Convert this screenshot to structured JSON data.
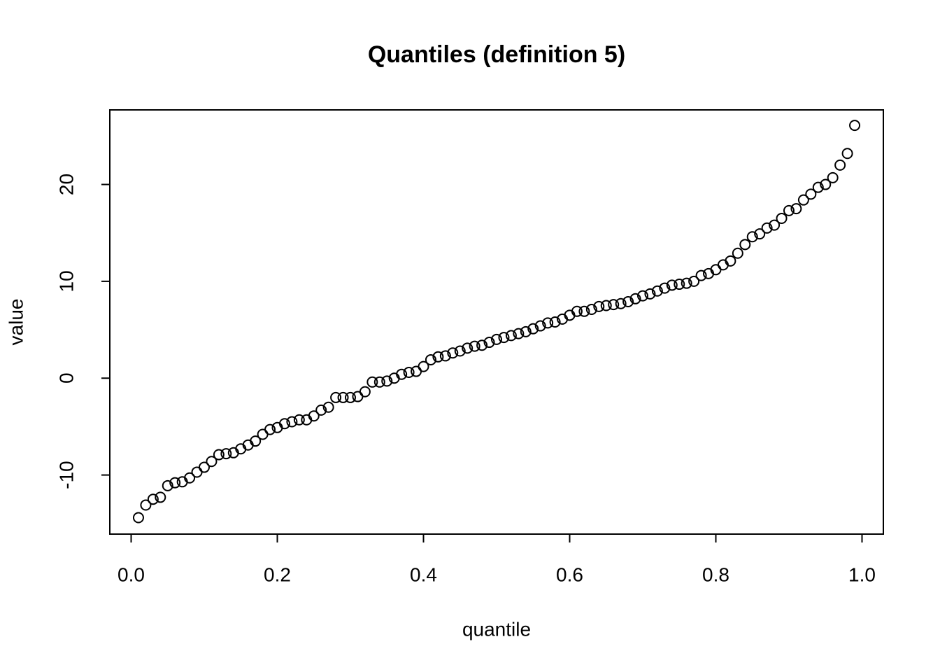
{
  "chart_data": {
    "type": "scatter",
    "title": "Quantiles (definition 5)",
    "x_label": "quantile",
    "y_label": "value",
    "x": [
      0.01,
      0.02,
      0.03,
      0.04,
      0.05,
      0.06,
      0.07,
      0.08,
      0.09,
      0.1,
      0.11,
      0.12,
      0.13,
      0.14,
      0.15,
      0.16,
      0.17,
      0.18,
      0.19,
      0.2,
      0.21,
      0.22,
      0.23,
      0.24,
      0.25,
      0.26,
      0.27,
      0.28,
      0.29,
      0.3,
      0.31,
      0.32,
      0.33,
      0.34,
      0.35,
      0.36,
      0.37,
      0.38,
      0.39,
      0.4,
      0.41,
      0.42,
      0.43,
      0.44,
      0.45,
      0.46,
      0.47,
      0.48,
      0.49,
      0.5,
      0.51,
      0.52,
      0.53,
      0.54,
      0.55,
      0.56,
      0.57,
      0.58,
      0.59,
      0.6,
      0.61,
      0.62,
      0.63,
      0.64,
      0.65,
      0.66,
      0.67,
      0.68,
      0.69,
      0.7,
      0.71,
      0.72,
      0.73,
      0.74,
      0.75,
      0.76,
      0.77,
      0.78,
      0.79,
      0.8,
      0.81,
      0.82,
      0.83,
      0.84,
      0.85,
      0.86,
      0.87,
      0.88,
      0.89,
      0.9,
      0.91,
      0.92,
      0.93,
      0.94,
      0.95,
      0.96,
      0.97,
      0.98,
      0.99
    ],
    "values": [
      -14.4,
      -13.1,
      -12.5,
      -12.3,
      -11.1,
      -10.8,
      -10.7,
      -10.3,
      -9.7,
      -9.2,
      -8.6,
      -7.9,
      -7.8,
      -7.7,
      -7.3,
      -6.9,
      -6.5,
      -5.8,
      -5.3,
      -5.1,
      -4.7,
      -4.5,
      -4.3,
      -4.3,
      -3.9,
      -3.3,
      -3.0,
      -2.0,
      -2.0,
      -2.0,
      -1.9,
      -1.4,
      -0.4,
      -0.4,
      -0.3,
      0.0,
      0.4,
      0.6,
      0.7,
      1.2,
      1.9,
      2.2,
      2.3,
      2.6,
      2.8,
      3.1,
      3.3,
      3.4,
      3.7,
      4.0,
      4.2,
      4.4,
      4.6,
      4.8,
      5.1,
      5.4,
      5.7,
      5.8,
      6.1,
      6.5,
      6.9,
      6.9,
      7.1,
      7.4,
      7.5,
      7.6,
      7.7,
      7.9,
      8.2,
      8.5,
      8.7,
      9.0,
      9.3,
      9.6,
      9.7,
      9.8,
      10.0,
      10.6,
      10.8,
      11.2,
      11.7,
      12.1,
      12.9,
      13.8,
      14.6,
      14.9,
      15.5,
      15.8,
      16.5,
      17.3,
      17.5,
      18.4,
      19.0,
      19.7,
      20.0,
      20.7,
      22.0,
      23.2,
      26.1
    ],
    "color": "#000000",
    "xlim": [
      -0.0292,
      1.0292
    ],
    "xticks": [
      {
        "value": 0,
        "label": "0.0"
      },
      0.2,
      0.4,
      0.6,
      0.8,
      {
        "value": 1,
        "label": "1.0"
      }
    ],
    "ylim": [
      -16.1,
      27.7
    ],
    "yticks": [
      -10,
      0,
      10,
      20
    ]
  }
}
